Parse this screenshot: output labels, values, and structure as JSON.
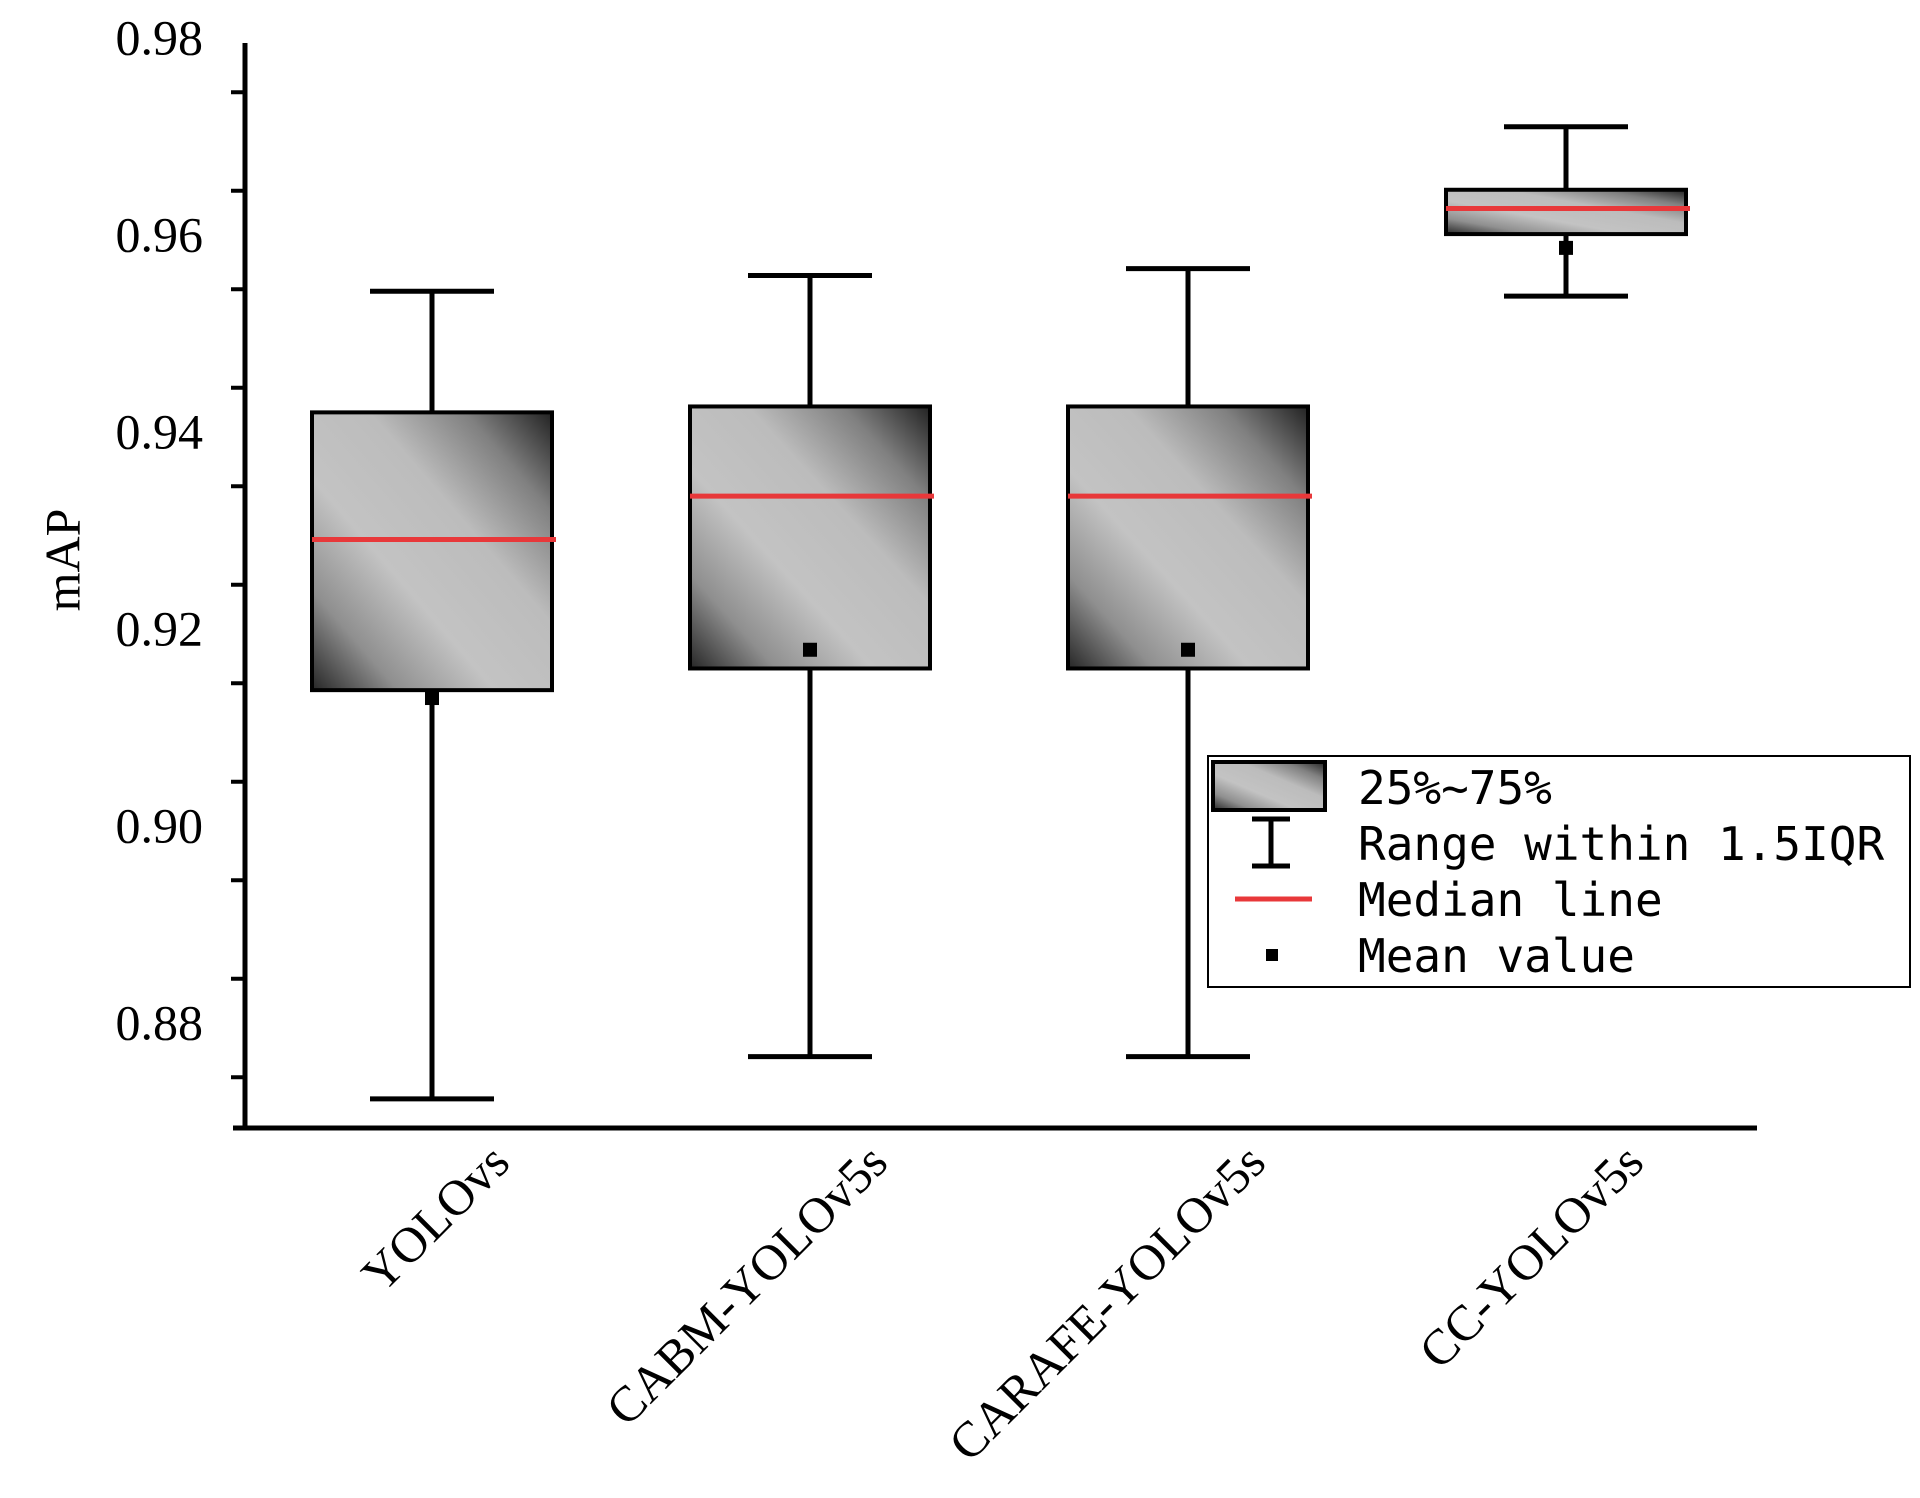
{
  "chart_data": {
    "type": "box",
    "title": "",
    "xlabel": "",
    "ylabel": "mAP",
    "ylim": [
      0.87,
      0.98
    ],
    "yticks": [
      "0.88",
      "0.90",
      "0.92",
      "0.94",
      "0.96",
      "0.98"
    ],
    "categories": [
      "YOLOvs",
      "CABM-YOLOv5s",
      "CARAFE-YOLOv5s",
      "CC-YOLOv5s"
    ],
    "boxes": [
      {
        "min": 0.8728,
        "q1": 0.9143,
        "median": 0.9296,
        "q3": 0.9425,
        "max": 0.9548,
        "mean": 0.9135
      },
      {
        "min": 0.8771,
        "q1": 0.9165,
        "median": 0.934,
        "q3": 0.9431,
        "max": 0.9564,
        "mean": 0.9184
      },
      {
        "min": 0.8771,
        "q1": 0.9165,
        "median": 0.934,
        "q3": 0.9431,
        "max": 0.9571,
        "mean": 0.9184
      },
      {
        "min": 0.9543,
        "q1": 0.9606,
        "median": 0.9632,
        "q3": 0.9651,
        "max": 0.9715,
        "mean": 0.9592
      }
    ],
    "legend": {
      "position": "right-middle",
      "items": [
        "25%~75%",
        "Range within 1.5IQR",
        "Median line",
        "Mean value"
      ]
    },
    "colors": {
      "median": "#e8383a",
      "box_light": "#c0c0c0",
      "box_dark": "#2a2a2a",
      "axis": "#000000"
    },
    "grid": false
  }
}
